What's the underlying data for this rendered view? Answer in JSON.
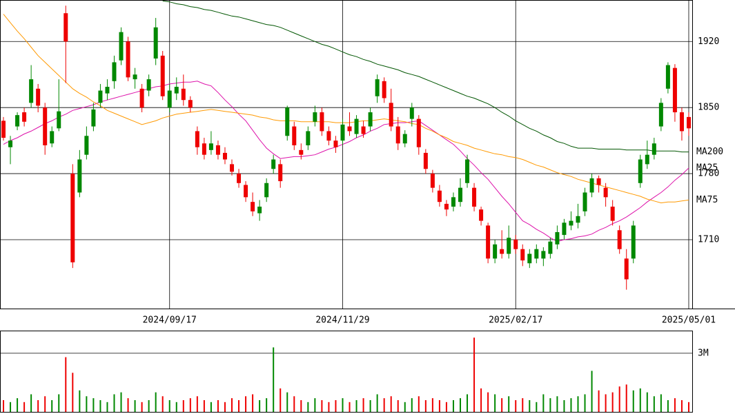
{
  "chart_data": [
    {
      "type": "candlestick",
      "categories": [
        null,
        null,
        null,
        null,
        null,
        null,
        null,
        null,
        null,
        null,
        null,
        null,
        null,
        null,
        null,
        null,
        null,
        null,
        null,
        null,
        null,
        null,
        null,
        null,
        "2024/09/17",
        null,
        null,
        null,
        null,
        null,
        null,
        null,
        null,
        null,
        null,
        null,
        null,
        null,
        null,
        null,
        null,
        null,
        null,
        null,
        null,
        null,
        null,
        null,
        null,
        "2024/11/29",
        null,
        null,
        null,
        null,
        null,
        null,
        null,
        null,
        null,
        null,
        null,
        null,
        null,
        null,
        null,
        null,
        null,
        null,
        null,
        null,
        null,
        null,
        null,
        null,
        "2025/02/17",
        null,
        null,
        null,
        null,
        null,
        null,
        null,
        null,
        null,
        null,
        null,
        null,
        null,
        null,
        null,
        null,
        null,
        null,
        null,
        null,
        null,
        null,
        null,
        null,
        "2025/05/01"
      ],
      "open": [
        1836,
        1808,
        1830,
        1845,
        1855,
        1870,
        1850,
        1812,
        1828,
        1950,
        1780,
        1760,
        1800,
        1830,
        1855,
        1865,
        1878,
        1900,
        1920,
        1880,
        1870,
        1868,
        1902,
        1905,
        1850,
        1865,
        1870,
        1858,
        1825,
        1812,
        1805,
        1810,
        1802,
        1790,
        1780,
        1768,
        1750,
        1738,
        1755,
        1785,
        1790,
        1820,
        1830,
        1805,
        1810,
        1835,
        1845,
        1825,
        1815,
        1815,
        1830,
        1822,
        1830,
        1830,
        1862,
        1878,
        1855,
        1830,
        1812,
        1838,
        1838,
        1802,
        1780,
        1762,
        1748,
        1745,
        1750,
        1770,
        1765,
        1742,
        1725,
        1690,
        1700,
        1695,
        1710,
        1700,
        1685,
        1690,
        1690,
        1695,
        1705,
        1715,
        1725,
        1728,
        1740,
        1760,
        1775,
        1765,
        1745,
        1720,
        1690,
        1690,
        1770,
        1790,
        1800,
        1830,
        1870,
        1892,
        1845,
        1840
      ],
      "high": [
        1840,
        1820,
        1845,
        1850,
        1895,
        1875,
        1855,
        1830,
        1880,
        1958,
        1790,
        1805,
        1830,
        1855,
        1875,
        1880,
        1905,
        1935,
        1925,
        1892,
        1875,
        1885,
        1945,
        1910,
        1875,
        1882,
        1885,
        1862,
        1830,
        1818,
        1825,
        1815,
        1808,
        1795,
        1785,
        1772,
        1760,
        1752,
        1775,
        1800,
        1795,
        1852,
        1835,
        1812,
        1830,
        1852,
        1850,
        1830,
        1820,
        1838,
        1845,
        1842,
        1836,
        1850,
        1885,
        1882,
        1870,
        1840,
        1826,
        1855,
        1842,
        1806,
        1784,
        1768,
        1752,
        1760,
        1775,
        1800,
        1770,
        1745,
        1728,
        1710,
        1720,
        1725,
        1715,
        1705,
        1700,
        1705,
        1702,
        1712,
        1725,
        1732,
        1740,
        1748,
        1765,
        1780,
        1778,
        1770,
        1752,
        1725,
        1700,
        1730,
        1800,
        1815,
        1818,
        1860,
        1898,
        1896,
        1850,
        1845
      ],
      "low": [
        1815,
        1790,
        1826,
        1830,
        1850,
        1845,
        1800,
        1808,
        1825,
        1876,
        1680,
        1755,
        1795,
        1825,
        1850,
        1858,
        1870,
        1895,
        1878,
        1870,
        1845,
        1862,
        1895,
        1858,
        1845,
        1858,
        1852,
        1845,
        1800,
        1795,
        1800,
        1795,
        1790,
        1778,
        1765,
        1750,
        1735,
        1730,
        1750,
        1780,
        1765,
        1815,
        1805,
        1795,
        1805,
        1830,
        1820,
        1810,
        1802,
        1810,
        1820,
        1818,
        1818,
        1825,
        1855,
        1855,
        1825,
        1805,
        1808,
        1830,
        1800,
        1780,
        1760,
        1745,
        1735,
        1740,
        1745,
        1765,
        1740,
        1725,
        1685,
        1685,
        1690,
        1690,
        1695,
        1682,
        1680,
        1685,
        1682,
        1690,
        1700,
        1710,
        1720,
        1722,
        1735,
        1755,
        1760,
        1745,
        1725,
        1695,
        1657,
        1685,
        1765,
        1785,
        1795,
        1825,
        1865,
        1835,
        1815,
        1820
      ],
      "close": [
        1818,
        1815,
        1842,
        1835,
        1880,
        1852,
        1810,
        1825,
        1846,
        1920,
        1686,
        1795,
        1820,
        1848,
        1868,
        1872,
        1898,
        1930,
        1882,
        1885,
        1850,
        1880,
        1935,
        1862,
        1868,
        1872,
        1858,
        1850,
        1808,
        1800,
        1812,
        1800,
        1795,
        1782,
        1770,
        1755,
        1740,
        1745,
        1770,
        1795,
        1772,
        1850,
        1810,
        1800,
        1825,
        1845,
        1825,
        1815,
        1808,
        1832,
        1825,
        1838,
        1822,
        1845,
        1880,
        1860,
        1830,
        1812,
        1822,
        1850,
        1808,
        1785,
        1765,
        1750,
        1742,
        1755,
        1765,
        1795,
        1745,
        1730,
        1690,
        1705,
        1695,
        1712,
        1700,
        1688,
        1695,
        1700,
        1698,
        1708,
        1718,
        1728,
        1730,
        1735,
        1760,
        1775,
        1768,
        1755,
        1730,
        1700,
        1668,
        1725,
        1795,
        1800,
        1812,
        1855,
        1895,
        1845,
        1825,
        1828
      ],
      "up_color": "#008800",
      "down_color": "#ee0000",
      "series": [
        {
          "name": "MA200",
          "color": "#005500",
          "values": [
            null,
            null,
            null,
            null,
            null,
            null,
            null,
            null,
            null,
            null,
            null,
            null,
            null,
            null,
            null,
            null,
            null,
            null,
            null,
            null,
            null,
            null,
            null,
            1963,
            1962,
            1960,
            1959,
            1957,
            1956,
            1954,
            1953,
            1951,
            1949,
            1947,
            1946,
            1944,
            1942,
            1940,
            1938,
            1937,
            1935,
            1932,
            1929,
            1926,
            1923,
            1920,
            1917,
            1915,
            1912,
            1909,
            1906,
            1904,
            1901,
            1899,
            1896,
            1894,
            1892,
            1890,
            1887,
            1885,
            1883,
            1880,
            1877,
            1874,
            1871,
            1868,
            1865,
            1862,
            1860,
            1857,
            1854,
            1850,
            1845,
            1841,
            1836,
            1832,
            1828,
            1825,
            1821,
            1818,
            1814,
            1812,
            1809,
            1807,
            1807,
            1807,
            1806,
            1806,
            1806,
            1806,
            1805,
            1805,
            1805,
            1805,
            1804,
            1804,
            1804,
            1804,
            1803,
            1803
          ]
        },
        {
          "name": "MA25",
          "color": "#dd11aa",
          "values": [
            1811,
            1815,
            1818,
            1822,
            1825,
            1829,
            1833,
            1836,
            1840,
            1843,
            1847,
            1849,
            1851,
            1853,
            1856,
            1858,
            1860,
            1862,
            1864,
            1866,
            1868,
            1870,
            1872,
            1873,
            1875,
            1876,
            1877,
            1877,
            1878,
            1875,
            1873,
            1866,
            1858,
            1851,
            1843,
            1836,
            1826,
            1816,
            1807,
            1801,
            1796,
            1797,
            1798,
            1798,
            1799,
            1800,
            1803,
            1806,
            1808,
            1811,
            1814,
            1818,
            1821,
            1825,
            1828,
            1832,
            1833,
            1834,
            1834,
            1835,
            1836,
            1831,
            1826,
            1821,
            1816,
            1811,
            1804,
            1796,
            1789,
            1781,
            1774,
            1765,
            1756,
            1748,
            1739,
            1730,
            1726,
            1721,
            1717,
            1712,
            1708,
            1710,
            1711,
            1713,
            1714,
            1716,
            1720,
            1723,
            1727,
            1730,
            1734,
            1739,
            1744,
            1750,
            1755,
            1760,
            1766,
            1773,
            1779,
            1786
          ]
        },
        {
          "name": "MA75",
          "color": "#ff9900",
          "values": [
            1949,
            1940,
            1931,
            1923,
            1914,
            1905,
            1898,
            1891,
            1884,
            1877,
            1870,
            1865,
            1861,
            1856,
            1852,
            1847,
            1844,
            1841,
            1838,
            1835,
            1832,
            1834,
            1836,
            1839,
            1841,
            1843,
            1844,
            1845,
            1846,
            1847,
            1848,
            1847,
            1846,
            1845,
            1844,
            1843,
            1842,
            1840,
            1839,
            1837,
            1836,
            1836,
            1836,
            1835,
            1835,
            1835,
            1835,
            1835,
            1834,
            1834,
            1834,
            1835,
            1836,
            1836,
            1837,
            1838,
            1837,
            1836,
            1835,
            1833,
            1832,
            1828,
            1825,
            1821,
            1818,
            1814,
            1812,
            1810,
            1807,
            1805,
            1803,
            1801,
            1800,
            1798,
            1797,
            1795,
            1792,
            1789,
            1787,
            1784,
            1781,
            1779,
            1777,
            1774,
            1772,
            1770,
            1768,
            1766,
            1764,
            1762,
            1760,
            1758,
            1756,
            1753,
            1751,
            1749,
            1750,
            1750,
            1751,
            1752
          ]
        }
      ],
      "ylim": [
        1637,
        1964
      ],
      "yticks": [
        1710,
        1780,
        1850,
        1920
      ],
      "grid": true
    },
    {
      "type": "bar",
      "values": [
        0.6,
        0.5,
        0.7,
        0.5,
        0.9,
        0.6,
        0.8,
        0.6,
        0.9,
        2.8,
        2.0,
        1.1,
        0.8,
        0.7,
        0.6,
        0.5,
        0.9,
        1.0,
        0.7,
        0.6,
        0.5,
        0.6,
        1.0,
        0.8,
        0.6,
        0.5,
        0.6,
        0.7,
        0.8,
        0.6,
        0.5,
        0.6,
        0.5,
        0.7,
        0.6,
        0.8,
        0.9,
        0.6,
        0.7,
        3.3,
        1.2,
        1.0,
        0.8,
        0.6,
        0.5,
        0.7,
        0.6,
        0.5,
        0.6,
        0.7,
        0.5,
        0.6,
        0.7,
        0.6,
        0.9,
        0.7,
        0.8,
        0.6,
        0.5,
        0.7,
        0.8,
        0.6,
        0.7,
        0.6,
        0.5,
        0.6,
        0.7,
        0.9,
        3.8,
        1.2,
        1.0,
        0.9,
        0.7,
        0.8,
        0.6,
        0.7,
        0.6,
        0.5,
        0.9,
        0.7,
        0.8,
        0.6,
        0.7,
        0.8,
        0.9,
        2.1,
        1.1,
        0.9,
        1.0,
        1.3,
        1.4,
        1.1,
        1.2,
        1.0,
        0.8,
        0.9,
        0.6,
        0.7,
        0.6,
        0.5
      ],
      "ylim": [
        0,
        4.16
      ],
      "yticks": [
        {
          "value": 3,
          "label": "3M"
        }
      ],
      "grid": true
    }
  ]
}
